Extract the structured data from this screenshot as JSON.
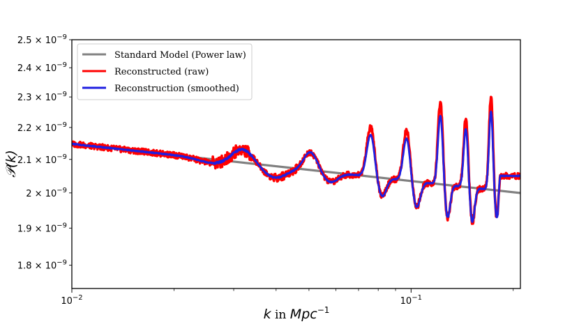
{
  "chart_data": {
    "type": "line",
    "title": "",
    "xlabel": {
      "symbol": "k",
      "mid": " in ",
      "unit": "Mpc",
      "exp": "−1"
    },
    "ylabel": {
      "calligraphic": "𝒫",
      "arg": "(k)"
    },
    "xscale": "log",
    "yscale": "log",
    "xlim": [
      0.01,
      0.21
    ],
    "ylim": [
      1.74e-09,
      2.5e-09
    ],
    "grid": false,
    "legend_position": "top-left",
    "x_ticks": [
      {
        "value": 0.01,
        "base": "10",
        "exp": "−2"
      },
      {
        "value": 0.1,
        "base": "10",
        "exp": "−1"
      }
    ],
    "y_ticks": [
      {
        "value": 2.5e-09,
        "mant": "2.5",
        "exp": "−9"
      },
      {
        "value": 2.4e-09,
        "mant": "2.4",
        "exp": "−9"
      },
      {
        "value": 2.3e-09,
        "mant": "2.3",
        "exp": "−9"
      },
      {
        "value": 2.2e-09,
        "mant": "2.2",
        "exp": "−9"
      },
      {
        "value": 2.1e-09,
        "mant": "2.1",
        "exp": "−9"
      },
      {
        "value": 2e-09,
        "mant": "2",
        "exp": "−9"
      },
      {
        "value": 1.9e-09,
        "mant": "1.9",
        "exp": "−9"
      },
      {
        "value": 1.8e-09,
        "mant": "1.8",
        "exp": "−9"
      }
    ],
    "times_sign": "×",
    "series": [
      {
        "name": "Standard Model (Power law)",
        "color": "#808080",
        "kind": "power-law",
        "amplitude_at_0.01": 2.148e-09,
        "spectral_index_minus_one": -0.0235
      },
      {
        "name": "Reconstructed (raw)",
        "color": "#ff0000",
        "kind": "oscillating",
        "noise_amplitude": 9e-12,
        "peak_scale": 1.2
      },
      {
        "name": "Reconstruction (smoothed)",
        "color": "#1f1fe0",
        "kind": "oscillating",
        "noise_amplitude": 1.5e-12,
        "peak_scale": 1.0
      }
    ],
    "features": [
      {
        "k": 0.0318,
        "height": 4.2e-11,
        "width": 0.045,
        "dip_after": 3.5e-11
      },
      {
        "k": 0.0505,
        "height": 5.5e-11,
        "width": 0.028,
        "dip_after": 3e-11
      },
      {
        "k": 0.076,
        "height": 1.3e-10,
        "width": 0.016,
        "dip_after": 5.5e-11
      },
      {
        "k": 0.097,
        "height": 1.3e-10,
        "width": 0.014,
        "dip_after": 7.5e-11
      },
      {
        "k": 0.122,
        "height": 2.15e-10,
        "width": 0.01,
        "dip_after": 9.5e-11
      },
      {
        "k": 0.145,
        "height": 1.8e-10,
        "width": 0.009,
        "dip_after": 1e-10
      },
      {
        "k": 0.172,
        "height": 2.45e-10,
        "width": 0.008,
        "dip_after": 8e-11
      }
    ],
    "tail": {
      "k_start": 0.18,
      "level": 2.05e-09
    }
  }
}
